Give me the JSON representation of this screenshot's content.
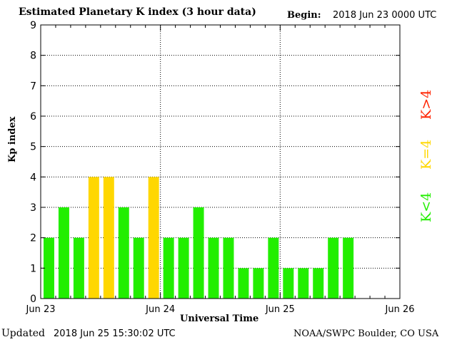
{
  "chart_data": {
    "type": "bar",
    "title": "Estimated Planetary K index (3 hour data)",
    "begin_label": "Begin:",
    "begin_value": "2018 Jun 23 0000 UTC",
    "ylabel": "Kp index",
    "xlabel": "Universal Time",
    "ylim": [
      0,
      9
    ],
    "y_ticks": [
      "0",
      "1",
      "2",
      "3",
      "4",
      "5",
      "6",
      "7",
      "8",
      "9"
    ],
    "x_ticks": [
      "Jun 23",
      "Jun 24",
      "Jun 25",
      "Jun 26"
    ],
    "grid": true,
    "values": [
      2,
      3,
      2,
      4,
      4,
      3,
      2,
      4,
      2,
      2,
      3,
      2,
      2,
      1,
      1,
      2,
      1,
      1,
      1,
      2,
      2
    ],
    "colors": {
      "below_4": "#22ee00",
      "equal_4": "#ffd700",
      "above_4": "#ff2200"
    },
    "legend": [
      {
        "label": "K<4",
        "color": "#22ee00"
      },
      {
        "label": "K=4",
        "color": "#ffd700"
      },
      {
        "label": "K>4",
        "color": "#ff2200"
      }
    ]
  },
  "footer": {
    "updated_label": "Updated",
    "updated_value": "2018 Jun 25 15:30:02 UTC",
    "credit": "NOAA/SWPC Boulder, CO USA"
  }
}
